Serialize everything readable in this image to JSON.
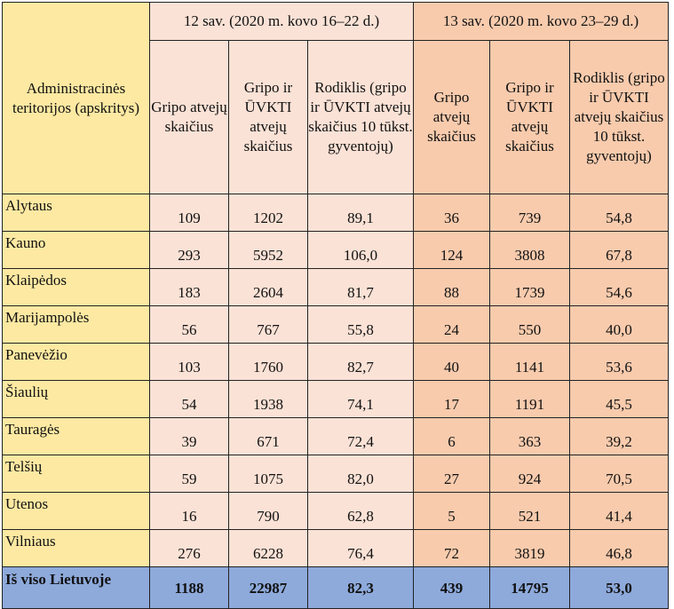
{
  "header": {
    "region": "Administracinės teritorijos (apskritys)",
    "week12": "12 sav. (2020 m. kovo 16–22 d.)",
    "week13": "13 sav. (2020 m. kovo 23–29 d.)",
    "col_flu": "Gripo atvejų skaičius",
    "col_flu_ari": "Gripo ir ŪVKTI atvejų skaičius",
    "col_rate": "Rodiklis (gripo ir ŪVKTI atvejų skaičius 10 tūkst. gyventojų)"
  },
  "rows": [
    {
      "name": "Alytaus",
      "w12": [
        "109",
        "1202",
        "89,1"
      ],
      "w13": [
        "36",
        "739",
        "54,8"
      ]
    },
    {
      "name": "Kauno",
      "w12": [
        "293",
        "5952",
        "106,0"
      ],
      "w13": [
        "124",
        "3808",
        "67,8"
      ]
    },
    {
      "name": "Klaipėdos",
      "w12": [
        "183",
        "2604",
        "81,7"
      ],
      "w13": [
        "88",
        "1739",
        "54,6"
      ]
    },
    {
      "name": "Marijampolės",
      "w12": [
        "56",
        "767",
        "55,8"
      ],
      "w13": [
        "24",
        "550",
        "40,0"
      ]
    },
    {
      "name": "Panevėžio",
      "w12": [
        "103",
        "1760",
        "82,7"
      ],
      "w13": [
        "40",
        "1141",
        "53,6"
      ]
    },
    {
      "name": "Šiaulių",
      "w12": [
        "54",
        "1938",
        "74,1"
      ],
      "w13": [
        "17",
        "1191",
        "45,5"
      ]
    },
    {
      "name": "Tauragės",
      "w12": [
        "39",
        "671",
        "72,4"
      ],
      "w13": [
        "6",
        "363",
        "39,2"
      ]
    },
    {
      "name": "Telšių",
      "w12": [
        "59",
        "1075",
        "82,0"
      ],
      "w13": [
        "27",
        "924",
        "70,5"
      ]
    },
    {
      "name": "Utenos",
      "w12": [
        "16",
        "790",
        "62,8"
      ],
      "w13": [
        "5",
        "521",
        "41,4"
      ]
    },
    {
      "name": "Vilniaus",
      "w12": [
        "276",
        "6228",
        "76,4"
      ],
      "w13": [
        "72",
        "3819",
        "46,8"
      ]
    }
  ],
  "total": {
    "name": "Iš viso Lietuvoje",
    "w12": [
      "1188",
      "22987",
      "82,3"
    ],
    "w13": [
      "439",
      "14795",
      "53,0"
    ]
  },
  "colors": {
    "region_fill": "#fde9a2",
    "week12_fill": "#fbe2d6",
    "week13_fill": "#f8cbad",
    "total_fill": "#8eaadb"
  }
}
